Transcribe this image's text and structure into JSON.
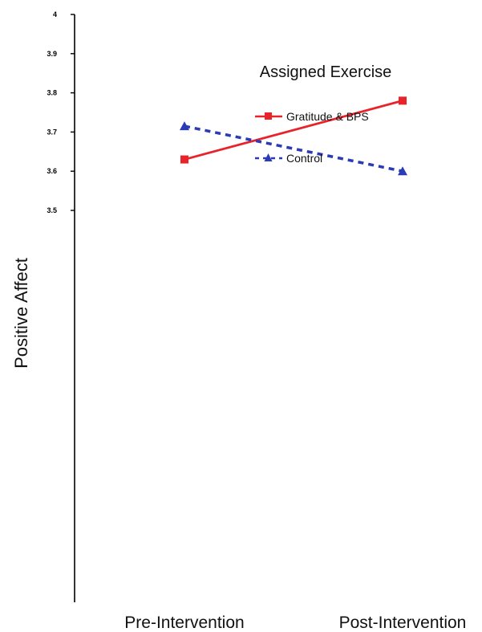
{
  "chart_data": {
    "type": "line",
    "categories": [
      "Pre-Intervention",
      "Post-Intervention"
    ],
    "ylabel": "Positive Affect",
    "ylim": [
      2.5,
      4
    ],
    "yticks": [
      "4",
      "3.9",
      "3.8",
      "3.7",
      "3.6",
      "3.5"
    ],
    "legend": {
      "title": "Assigned Exercise",
      "placement": "top-right"
    },
    "grid": false,
    "series": [
      {
        "name": "Gratitude & BPS",
        "values": [
          3.63,
          3.78
        ],
        "color": "#e8232a",
        "style": "solid",
        "marker": "square"
      },
      {
        "name": "Control",
        "values": [
          3.715,
          3.6
        ],
        "color": "#2b3bb5",
        "style": "dashed",
        "marker": "triangle"
      }
    ]
  }
}
